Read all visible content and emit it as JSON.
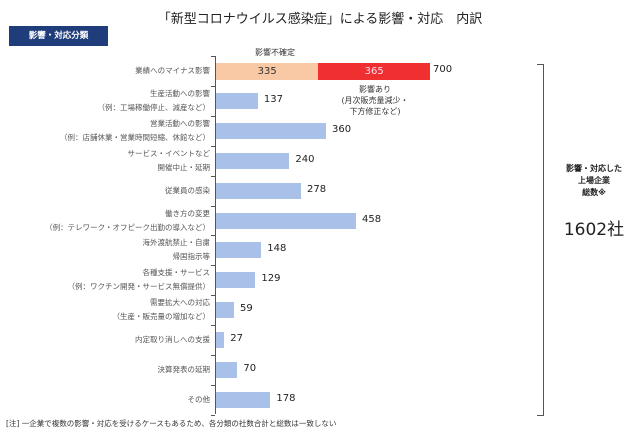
{
  "title": "「新型コロナウイルス感染症」による影響・対応　内訳",
  "badge": "影響・対応分類",
  "chart_data": {
    "type": "bar",
    "orientation": "horizontal",
    "categories": [
      [
        "業績へのマイナス影響"
      ],
      [
        "生産活動への影響",
        "（例：工場稼働停止、減産など）"
      ],
      [
        "営業活動への影響",
        "（例：店舗休業・営業時間短縮、休館など）"
      ],
      [
        "サービス・イベントなど",
        "開催中止・延期"
      ],
      [
        "従業員の感染"
      ],
      [
        "働き方の変更",
        "（例：テレワーク・オフピーク出勤の導入など）"
      ],
      [
        "海外渡航禁止・自粛",
        "帰国指示等"
      ],
      [
        "各種支援・サービス",
        "（例：ワクチン開発・サービス無償提供）"
      ],
      [
        "需要拡大への対応",
        "（生産・販売量の増加など）"
      ],
      [
        "内定取り消しへの支援"
      ],
      [
        "決算発表の延期"
      ],
      [
        "その他"
      ]
    ],
    "values": [
      700,
      137,
      360,
      240,
      278,
      458,
      148,
      129,
      59,
      27,
      70,
      178
    ],
    "stacked_first": {
      "segments": [
        {
          "name": "影響不確定",
          "value": 335,
          "color": "#f8c9a4"
        },
        {
          "name": "影響あり",
          "value": 365,
          "color": "#f03030"
        }
      ],
      "total": 700
    },
    "bar_color": "#a9c0e8",
    "annotations": {
      "uncertain": "影響不確定",
      "confirmed": [
        "影響あり",
        "(月次販売量減少・",
        "下方修正など)"
      ]
    },
    "xlim": [
      0,
      700
    ]
  },
  "summary": {
    "label": [
      "影響・対応した",
      "上場企業",
      "総数※"
    ],
    "total": "1602社"
  },
  "note": "[注] 一企業で複数の影響・対応を受けるケースもあるため、各分類の社数合計と総数は一致しない"
}
